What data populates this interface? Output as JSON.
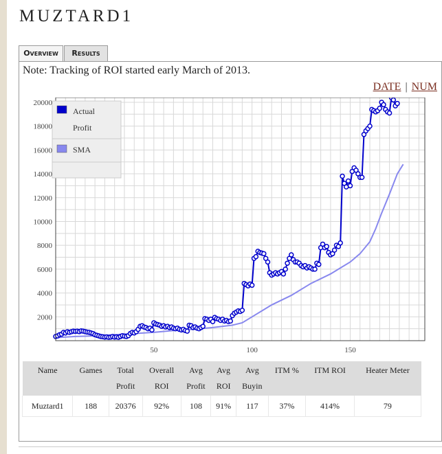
{
  "page": {
    "title": "MUZTARD1"
  },
  "tabs": [
    {
      "label": "Overview",
      "active": true
    },
    {
      "label": "Results",
      "active": false
    }
  ],
  "note": "Note: Tracking of ROI started early March of 2013.",
  "view_toggle": {
    "date_label": "DATE",
    "separator": "|",
    "num_label": "NUM"
  },
  "chart_data": {
    "type": "line",
    "xlim": [
      0,
      188
    ],
    "ylim": [
      0,
      20400
    ],
    "xticks": [
      50,
      100,
      150
    ],
    "yticks": [
      2000,
      4000,
      6000,
      8000,
      10000,
      12000,
      14000,
      16000,
      18000,
      20000
    ],
    "grid": true,
    "legend_position": "top-left",
    "series": [
      {
        "name": "Actual Profit",
        "color": "#0000cc",
        "markers": true,
        "points": [
          [
            0,
            350
          ],
          [
            1,
            400
          ],
          [
            2,
            500
          ],
          [
            3,
            550
          ],
          [
            4,
            700
          ],
          [
            5,
            650
          ],
          [
            6,
            750
          ],
          [
            7,
            700
          ],
          [
            8,
            750
          ],
          [
            9,
            800
          ],
          [
            10,
            780
          ],
          [
            11,
            800
          ],
          [
            12,
            760
          ],
          [
            13,
            820
          ],
          [
            14,
            800
          ],
          [
            15,
            760
          ],
          [
            16,
            720
          ],
          [
            17,
            700
          ],
          [
            18,
            650
          ],
          [
            19,
            600
          ],
          [
            20,
            500
          ],
          [
            21,
            450
          ],
          [
            22,
            400
          ],
          [
            23,
            350
          ],
          [
            24,
            330
          ],
          [
            25,
            300
          ],
          [
            26,
            320
          ],
          [
            27,
            280
          ],
          [
            28,
            300
          ],
          [
            29,
            350
          ],
          [
            30,
            300
          ],
          [
            31,
            320
          ],
          [
            32,
            280
          ],
          [
            33,
            350
          ],
          [
            34,
            420
          ],
          [
            35,
            380
          ],
          [
            36,
            350
          ],
          [
            37,
            420
          ],
          [
            38,
            600
          ],
          [
            39,
            700
          ],
          [
            40,
            650
          ],
          [
            41,
            750
          ],
          [
            42,
            950
          ],
          [
            43,
            1200
          ],
          [
            44,
            1250
          ],
          [
            45,
            1150
          ],
          [
            46,
            1100
          ],
          [
            47,
            1000
          ],
          [
            48,
            1050
          ],
          [
            49,
            900
          ],
          [
            50,
            1500
          ],
          [
            51,
            1400
          ],
          [
            52,
            1350
          ],
          [
            53,
            1300
          ],
          [
            54,
            1200
          ],
          [
            55,
            1250
          ],
          [
            56,
            1150
          ],
          [
            57,
            1200
          ],
          [
            58,
            1100
          ],
          [
            59,
            1150
          ],
          [
            60,
            1050
          ],
          [
            61,
            1000
          ],
          [
            62,
            1050
          ],
          [
            63,
            950
          ],
          [
            64,
            900
          ],
          [
            65,
            950
          ],
          [
            66,
            850
          ],
          [
            67,
            800
          ],
          [
            68,
            1300
          ],
          [
            69,
            1250
          ],
          [
            70,
            1100
          ],
          [
            71,
            1150
          ],
          [
            72,
            1050
          ],
          [
            73,
            1000
          ],
          [
            74,
            1100
          ],
          [
            75,
            1200
          ],
          [
            76,
            1850
          ],
          [
            77,
            1800
          ],
          [
            78,
            1700
          ],
          [
            79,
            1800
          ],
          [
            80,
            1600
          ],
          [
            81,
            1950
          ],
          [
            82,
            1850
          ],
          [
            83,
            1800
          ],
          [
            84,
            1700
          ],
          [
            85,
            1800
          ],
          [
            86,
            1650
          ],
          [
            87,
            1700
          ],
          [
            88,
            1600
          ],
          [
            89,
            1650
          ],
          [
            90,
            2100
          ],
          [
            91,
            2300
          ],
          [
            92,
            2400
          ],
          [
            93,
            2500
          ],
          [
            94,
            2450
          ],
          [
            95,
            2550
          ],
          [
            96,
            4800
          ],
          [
            97,
            4700
          ],
          [
            98,
            4600
          ],
          [
            99,
            4750
          ],
          [
            100,
            4650
          ],
          [
            101,
            6900
          ],
          [
            102,
            7050
          ],
          [
            103,
            7500
          ],
          [
            104,
            7400
          ],
          [
            105,
            7350
          ],
          [
            106,
            7300
          ],
          [
            107,
            6900
          ],
          [
            108,
            6600
          ],
          [
            109,
            5700
          ],
          [
            110,
            5500
          ],
          [
            111,
            5600
          ],
          [
            112,
            5700
          ],
          [
            113,
            5600
          ],
          [
            114,
            5700
          ],
          [
            115,
            5800
          ],
          [
            116,
            5600
          ],
          [
            117,
            6000
          ],
          [
            118,
            6500
          ],
          [
            119,
            6900
          ],
          [
            120,
            7200
          ],
          [
            121,
            6800
          ],
          [
            122,
            6600
          ],
          [
            123,
            6600
          ],
          [
            124,
            6500
          ],
          [
            125,
            6300
          ],
          [
            126,
            6200
          ],
          [
            127,
            6300
          ],
          [
            128,
            6100
          ],
          [
            129,
            6200
          ],
          [
            130,
            6100
          ],
          [
            131,
            6000
          ],
          [
            132,
            6000
          ],
          [
            133,
            6500
          ],
          [
            134,
            6400
          ],
          [
            135,
            7800
          ],
          [
            136,
            8100
          ],
          [
            137,
            7800
          ],
          [
            138,
            7900
          ],
          [
            139,
            7400
          ],
          [
            140,
            7200
          ],
          [
            141,
            7300
          ],
          [
            142,
            7600
          ],
          [
            143,
            8000
          ],
          [
            144,
            7900
          ],
          [
            145,
            8200
          ],
          [
            146,
            13800
          ],
          [
            147,
            13200
          ],
          [
            148,
            12900
          ],
          [
            149,
            13400
          ],
          [
            150,
            13000
          ],
          [
            151,
            14200
          ],
          [
            152,
            14500
          ],
          [
            153,
            14300
          ],
          [
            154,
            14000
          ],
          [
            155,
            13700
          ],
          [
            156,
            13700
          ],
          [
            157,
            17300
          ],
          [
            158,
            17600
          ],
          [
            159,
            17800
          ],
          [
            160,
            18000
          ],
          [
            161,
            19400
          ],
          [
            162,
            19300
          ],
          [
            163,
            19200
          ],
          [
            164,
            19300
          ],
          [
            165,
            19500
          ],
          [
            166,
            20000
          ],
          [
            167,
            19800
          ],
          [
            168,
            19400
          ],
          [
            169,
            19200
          ],
          [
            170,
            19100
          ],
          [
            171,
            20400
          ],
          [
            172,
            20200
          ],
          [
            173,
            19700
          ],
          [
            174,
            19900
          ]
        ]
      },
      {
        "name": "SMA",
        "color": "#8888ee",
        "markers": false,
        "points": [
          [
            0,
            250
          ],
          [
            10,
            350
          ],
          [
            20,
            400
          ],
          [
            30,
            500
          ],
          [
            40,
            600
          ],
          [
            50,
            700
          ],
          [
            60,
            850
          ],
          [
            70,
            950
          ],
          [
            80,
            1100
          ],
          [
            90,
            1300
          ],
          [
            95,
            1500
          ],
          [
            100,
            2000
          ],
          [
            110,
            3000
          ],
          [
            120,
            3800
          ],
          [
            130,
            4800
          ],
          [
            140,
            5600
          ],
          [
            145,
            6100
          ],
          [
            150,
            6600
          ],
          [
            155,
            7300
          ],
          [
            160,
            8300
          ],
          [
            163,
            9400
          ],
          [
            166,
            10700
          ],
          [
            170,
            12300
          ],
          [
            174,
            14000
          ],
          [
            177,
            14800
          ]
        ]
      }
    ]
  },
  "stats_table": {
    "columns": [
      [
        "Name"
      ],
      [
        "Games"
      ],
      [
        "Total",
        "Profit"
      ],
      [
        "Overall",
        "ROI"
      ],
      [
        "Avg",
        "Profit"
      ],
      [
        "Avg",
        "ROI"
      ],
      [
        "Avg",
        "Buyin"
      ],
      [
        "ITM %"
      ],
      [
        "ITM ROI"
      ],
      [
        "Heater Meter"
      ]
    ],
    "rows": [
      [
        "Muztard1",
        "188",
        "20376",
        "92%",
        "108",
        "91%",
        "117",
        "37%",
        "414%",
        "79"
      ]
    ]
  }
}
